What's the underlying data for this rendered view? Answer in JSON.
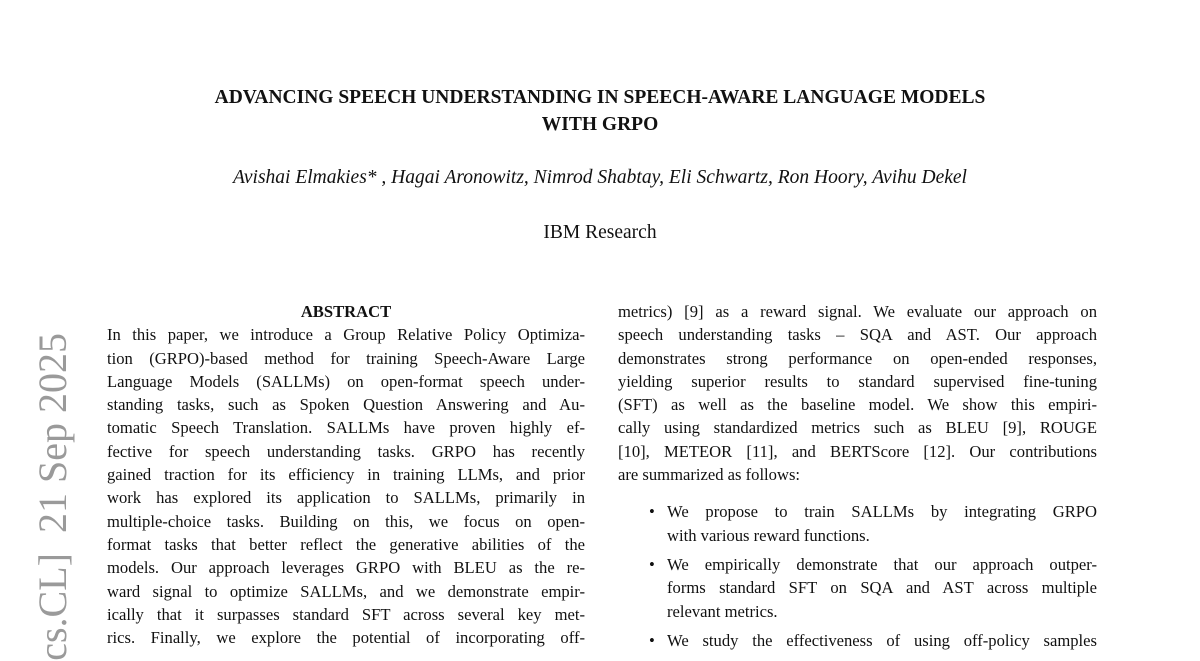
{
  "sidebar_stamp": "cs.CL]  21 Sep 2025",
  "title": [
    "ADVANCING SPEECH UNDERSTANDING IN SPEECH-AWARE LANGUAGE MODELS",
    "WITH GRPO"
  ],
  "authors": "Avishai Elmakies* , Hagai Aronowitz, Nimrod Shabtay, Eli Schwartz, Ron Hoory, Avihu Dekel",
  "affiliation": "IBM Research",
  "abstract": {
    "heading": "ABSTRACT",
    "lines": [
      "In this paper, we introduce a Group Relative Policy Optimiza-",
      "tion (GRPO)-based method for training Speech-Aware Large",
      "Language Models (SALLMs) on open-format speech under-",
      "standing tasks, such as Spoken Question Answering and Au-",
      "tomatic Speech Translation. SALLMs have proven highly ef-",
      "fective for speech understanding tasks.  GRPO has recently",
      "gained traction for its efficiency in training LLMs, and prior",
      "work has explored its application to SALLMs, primarily in",
      "multiple-choice tasks.  Building on this, we focus on open-",
      "format tasks that better reflect the generative abilities of the",
      "models. Our approach leverages GRPO with BLEU as the re-",
      "ward signal to optimize SALLMs, and we demonstrate empir-",
      "ically that it surpasses standard SFT across several key met-",
      "rics.  Finally, we explore the potential of incorporating off-"
    ]
  },
  "right_column": {
    "lines": [
      "metrics) [9] as a reward signal.  We evaluate our approach on",
      "speech understanding tasks – SQA and AST. Our approach",
      "demonstrates strong performance on open-ended responses,",
      "yielding superior results to standard supervised fine-tuning",
      "(SFT) as well as the baseline model.  We show this empiri-",
      "cally using standardized metrics such as BLEU [9], ROUGE",
      "[10], METEOR [11], and BERTScore [12]. Our contributions",
      "are summarized as follows:"
    ],
    "bullets": [
      [
        "We propose to train SALLMs by integrating GRPO",
        "with various reward functions."
      ],
      [
        "We empirically demonstrate that our approach outper-",
        "forms standard SFT on SQA and AST across multiple",
        "relevant metrics."
      ],
      [
        "We study the effectiveness of using off-policy samples"
      ]
    ],
    "bullet_glyph": "•"
  }
}
